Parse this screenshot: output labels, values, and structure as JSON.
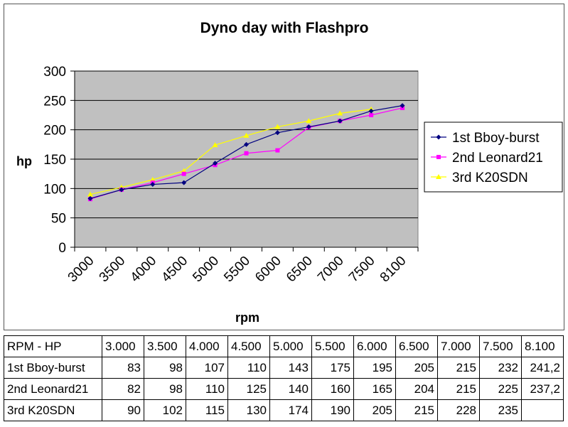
{
  "chart_data": {
    "type": "line",
    "title": "Dyno day with Flashpro",
    "xlabel": "rpm",
    "ylabel": "hp",
    "categories": [
      "3000",
      "3500",
      "4000",
      "4500",
      "5000",
      "5500",
      "6000",
      "6500",
      "7000",
      "7500",
      "8100"
    ],
    "ylim": [
      0,
      300
    ],
    "yticks": [
      "0",
      "50",
      "100",
      "150",
      "200",
      "250",
      "300"
    ],
    "grid": true,
    "legend_position": "right",
    "plot_background": "#c0c0c0",
    "series": [
      {
        "name": "1st Bboy-burst",
        "color": "#000080",
        "marker": "diamond",
        "values": [
          83,
          98,
          107,
          110,
          143,
          175,
          195,
          205,
          215,
          232,
          241.2
        ]
      },
      {
        "name": "2nd Leonard21",
        "color": "#ff00ff",
        "marker": "square",
        "values": [
          82,
          98,
          110,
          125,
          140,
          160,
          165,
          204,
          215,
          225,
          237.2
        ]
      },
      {
        "name": "3rd K20SDN",
        "color": "#ffff00",
        "marker": "triangle",
        "values": [
          90,
          102,
          115,
          130,
          174,
          190,
          205,
          215,
          228,
          235,
          null
        ]
      }
    ]
  },
  "table": {
    "header_label": "RPM - HP",
    "columns": [
      "3.000",
      "3.500",
      "4.000",
      "4.500",
      "5.000",
      "5.500",
      "6.000",
      "6.500",
      "7.000",
      "7.500",
      "8.100"
    ],
    "rows": [
      {
        "label": "1st Bboy-burst",
        "cells": [
          "83",
          "98",
          "107",
          "110",
          "143",
          "175",
          "195",
          "205",
          "215",
          "232",
          "241,2"
        ]
      },
      {
        "label": "2nd Leonard21",
        "cells": [
          "82",
          "98",
          "110",
          "125",
          "140",
          "160",
          "165",
          "204",
          "215",
          "225",
          "237,2"
        ]
      },
      {
        "label": "3rd K20SDN",
        "cells": [
          "90",
          "102",
          "115",
          "130",
          "174",
          "190",
          "205",
          "215",
          "228",
          "235",
          ""
        ]
      }
    ]
  }
}
